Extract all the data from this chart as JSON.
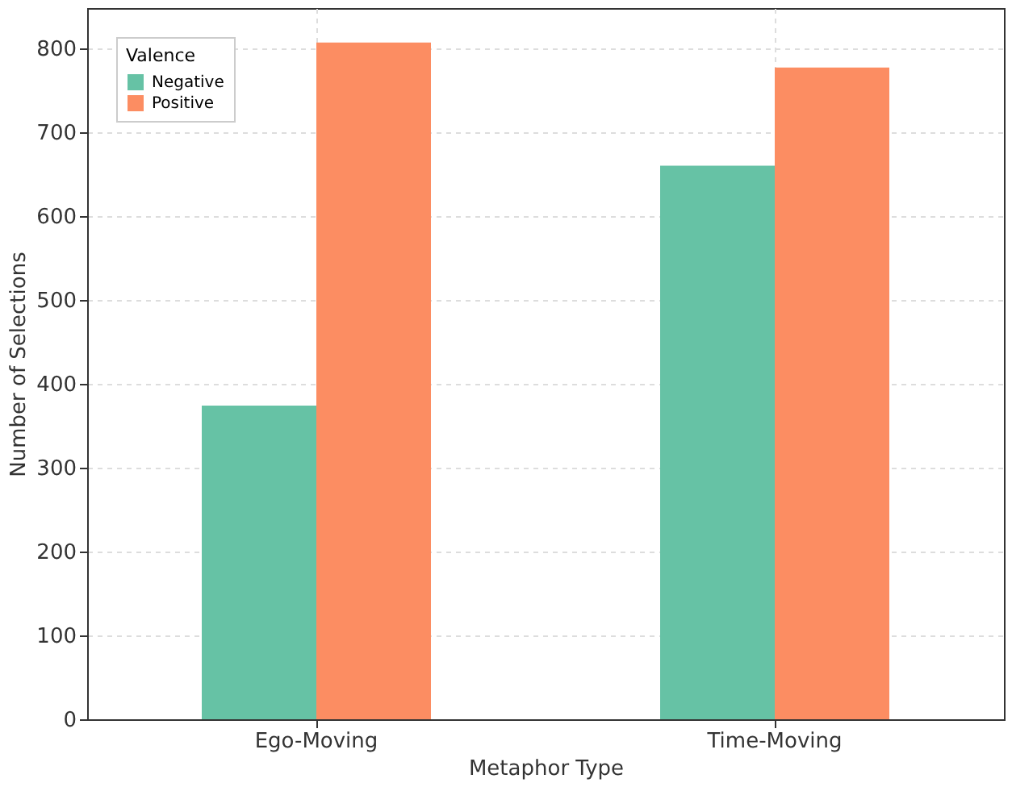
{
  "chart_data": {
    "type": "bar",
    "xlabel": "Metaphor Type",
    "ylabel": "Number of Selections",
    "legend_title": "Valence",
    "categories": [
      "Ego-Moving",
      "Time-Moving"
    ],
    "series": [
      {
        "name": "Negative",
        "color": "#66c2a5",
        "values": [
          374,
          660
        ]
      },
      {
        "name": "Positive",
        "color": "#fc8d62",
        "values": [
          807,
          777
        ]
      }
    ],
    "ylim": [
      0,
      848
    ],
    "yticks": [
      0,
      100,
      200,
      300,
      400,
      500,
      600,
      700,
      800
    ],
    "grid": true,
    "legend": "top left"
  }
}
